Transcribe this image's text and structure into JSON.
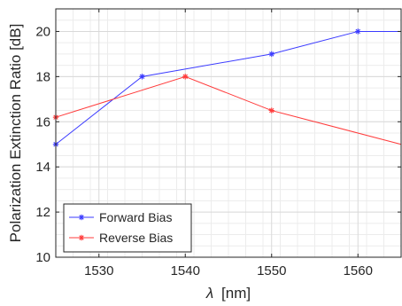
{
  "chart_data": {
    "type": "line",
    "title": "",
    "xlabel_symbol": "λ",
    "xlabel_unit": "[nm]",
    "ylabel": "Polarization Extinction Ratio [dB]",
    "xlim": [
      1525,
      1565
    ],
    "ylim": [
      10,
      21
    ],
    "xticks": [
      1530,
      1540,
      1550,
      1560
    ],
    "yticks": [
      10,
      12,
      14,
      16,
      18,
      20
    ],
    "grid": true,
    "minor_grid": true,
    "legend_location": "bottom-left",
    "series": [
      {
        "name": "Forward Bias",
        "color": "#3b3bff",
        "marker": "asterisk",
        "points": [
          {
            "x": 1525,
            "y": 15.0,
            "marker": true
          },
          {
            "x": 1535,
            "y": 18.0,
            "marker": true
          },
          {
            "x": 1550,
            "y": 19.0,
            "marker": true
          },
          {
            "x": 1560,
            "y": 20.0,
            "marker": true
          },
          {
            "x": 1565,
            "y": 20.0,
            "marker": false
          }
        ]
      },
      {
        "name": "Reverse Bias",
        "color": "#ff3b3b",
        "marker": "asterisk",
        "points": [
          {
            "x": 1525,
            "y": 16.2,
            "marker": true
          },
          {
            "x": 1540,
            "y": 18.0,
            "marker": true
          },
          {
            "x": 1550,
            "y": 16.5,
            "marker": true
          },
          {
            "x": 1565,
            "y": 15.0,
            "marker": false
          }
        ]
      }
    ]
  }
}
